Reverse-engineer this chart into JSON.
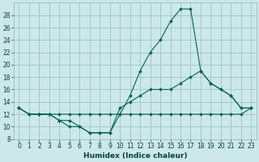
{
  "xlabel": "Humidex (Indice chaleur)",
  "background_color": "#cce8e8",
  "grid_color": "#99bbbb",
  "line_color": "#006655",
  "xlim": [
    -0.5,
    23.5
  ],
  "ylim": [
    8,
    30
  ],
  "yticks": [
    8,
    10,
    12,
    14,
    16,
    18,
    20,
    22,
    24,
    26,
    28
  ],
  "xticks": [
    0,
    1,
    2,
    3,
    4,
    5,
    6,
    7,
    8,
    9,
    10,
    11,
    12,
    13,
    14,
    15,
    16,
    17,
    18,
    19,
    20,
    21,
    22,
    23
  ],
  "line1_y": [
    13,
    12,
    12,
    12,
    11,
    11,
    10,
    9,
    9,
    9,
    12,
    15,
    19,
    22,
    24,
    27,
    29,
    29,
    19,
    17,
    16,
    15,
    13,
    13
  ],
  "line2_y": [
    13,
    12,
    12,
    12,
    11,
    10,
    10,
    9,
    9,
    9,
    13,
    14,
    15,
    16,
    16,
    16,
    17,
    18,
    19,
    17,
    16,
    15,
    13,
    13
  ],
  "line3_y": [
    13,
    12,
    12,
    12,
    12,
    12,
    12,
    12,
    12,
    12,
    12,
    12,
    12,
    12,
    12,
    12,
    12,
    12,
    12,
    12,
    12,
    12,
    12,
    13
  ],
  "marker": "D",
  "markersize": 2.0,
  "linewidth": 0.8,
  "xlabel_fontsize": 6.5,
  "tick_fontsize": 5.5,
  "xlabel_color": "#004444",
  "tick_color": "#004444"
}
